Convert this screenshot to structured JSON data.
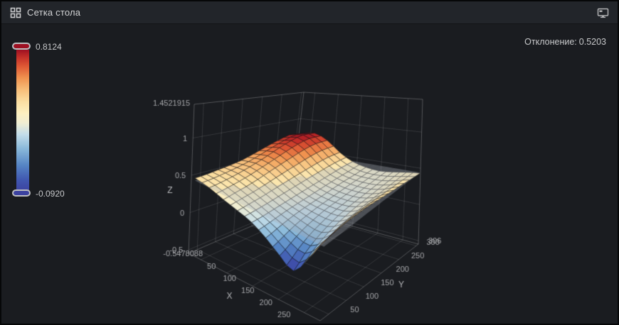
{
  "panel": {
    "title": "Сетка стола",
    "header_icon": "grid-icon",
    "action_icon": "monitor-icon"
  },
  "stats": {
    "deviation_label": "Отклонение:",
    "deviation_value": "0.5203"
  },
  "colorbar": {
    "max_label": "0.8124",
    "min_label": "-0.0920",
    "max_color": "#9d1022",
    "min_color": "#3c42a0"
  },
  "chart_data": {
    "type": "surface3d",
    "x_label": "X",
    "y_label": "Y",
    "z_label": "Z",
    "x_range": [
      26,
      281
    ],
    "y_range": [
      26,
      306
    ],
    "z_range": [
      -0.5478088,
      1.4521915
    ],
    "x_ticks": [
      50,
      100,
      150,
      200,
      250
    ],
    "y_ticks": [
      50,
      100,
      150,
      200,
      250,
      300
    ],
    "z_ticks": [
      -0.5,
      0,
      0.5,
      1
    ],
    "z_axis_top_label": "1.4521915",
    "z_axis_bottom_label": "-0.5478088",
    "y_axis_end_label": "306",
    "color_min": -0.092,
    "color_max": 0.8124,
    "colormap": [
      [
        0,
        "#3c42a0"
      ],
      [
        0.08,
        "#4158b1"
      ],
      [
        0.18,
        "#5584c4"
      ],
      [
        0.3,
        "#8ab9da"
      ],
      [
        0.4,
        "#c3dde9"
      ],
      [
        0.48,
        "#f0eed3"
      ],
      [
        0.55,
        "#fdf0c0"
      ],
      [
        0.63,
        "#fbdfa2"
      ],
      [
        0.72,
        "#f7bc77"
      ],
      [
        0.8,
        "#f0924f"
      ],
      [
        0.88,
        "#df5a35"
      ],
      [
        0.95,
        "#c22d28"
      ],
      [
        1,
        "#9d1022"
      ]
    ],
    "flat_plane": {
      "z": 0.44,
      "color": "#aab0b8",
      "opacity": 0.36
    },
    "x_domain": [
      30,
      280
    ],
    "y_domain": [
      30,
      306
    ],
    "z_grid": [
      [
        0.47,
        0.44,
        0.38,
        0.33,
        0.27,
        0.16,
        0.02,
        -0.09,
        0.18,
        0.52
      ],
      [
        0.48,
        0.46,
        0.41,
        0.35,
        0.28,
        0.2,
        0.1,
        0.05,
        0.24,
        0.53
      ],
      [
        0.5,
        0.49,
        0.44,
        0.37,
        0.3,
        0.24,
        0.18,
        0.15,
        0.29,
        0.54
      ],
      [
        0.52,
        0.53,
        0.48,
        0.4,
        0.32,
        0.27,
        0.23,
        0.22,
        0.33,
        0.54
      ],
      [
        0.55,
        0.58,
        0.53,
        0.43,
        0.34,
        0.29,
        0.27,
        0.27,
        0.35,
        0.53
      ],
      [
        0.6,
        0.64,
        0.58,
        0.46,
        0.36,
        0.31,
        0.29,
        0.3,
        0.37,
        0.51
      ],
      [
        0.66,
        0.71,
        0.63,
        0.49,
        0.38,
        0.33,
        0.31,
        0.32,
        0.38,
        0.49
      ],
      [
        0.72,
        0.77,
        0.68,
        0.52,
        0.4,
        0.35,
        0.33,
        0.34,
        0.39,
        0.47
      ],
      [
        0.77,
        0.81,
        0.71,
        0.54,
        0.42,
        0.36,
        0.35,
        0.36,
        0.4,
        0.45
      ],
      [
        0.75,
        0.79,
        0.7,
        0.54,
        0.43,
        0.38,
        0.36,
        0.38,
        0.41,
        0.43
      ]
    ]
  }
}
